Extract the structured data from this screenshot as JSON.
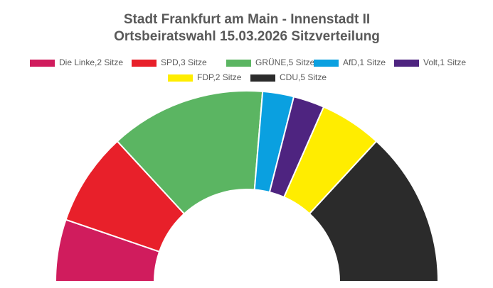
{
  "chart_data": {
    "type": "semicircle-donut",
    "title": "Stadt Frankfurt am Main - Innenstadt II",
    "subtitle": "Ortsbeiratswahl 15.03.2026 Sitzverteilung",
    "categories": [
      "Die Linke,2 Sitze",
      "SPD,3 Sitze",
      "GRÜNE,5 Sitze",
      "AfD,1 Sitze",
      "Volt,1 Sitze",
      "FDP,2 Sitze",
      "CDU,5 Sitze"
    ],
    "values": [
      2,
      3,
      5,
      1,
      1,
      2,
      5
    ],
    "colors": [
      "#d01c5d",
      "#e8202a",
      "#5bb562",
      "#0aa0e0",
      "#4e2480",
      "#ffed00",
      "#2b2b2b"
    ]
  }
}
